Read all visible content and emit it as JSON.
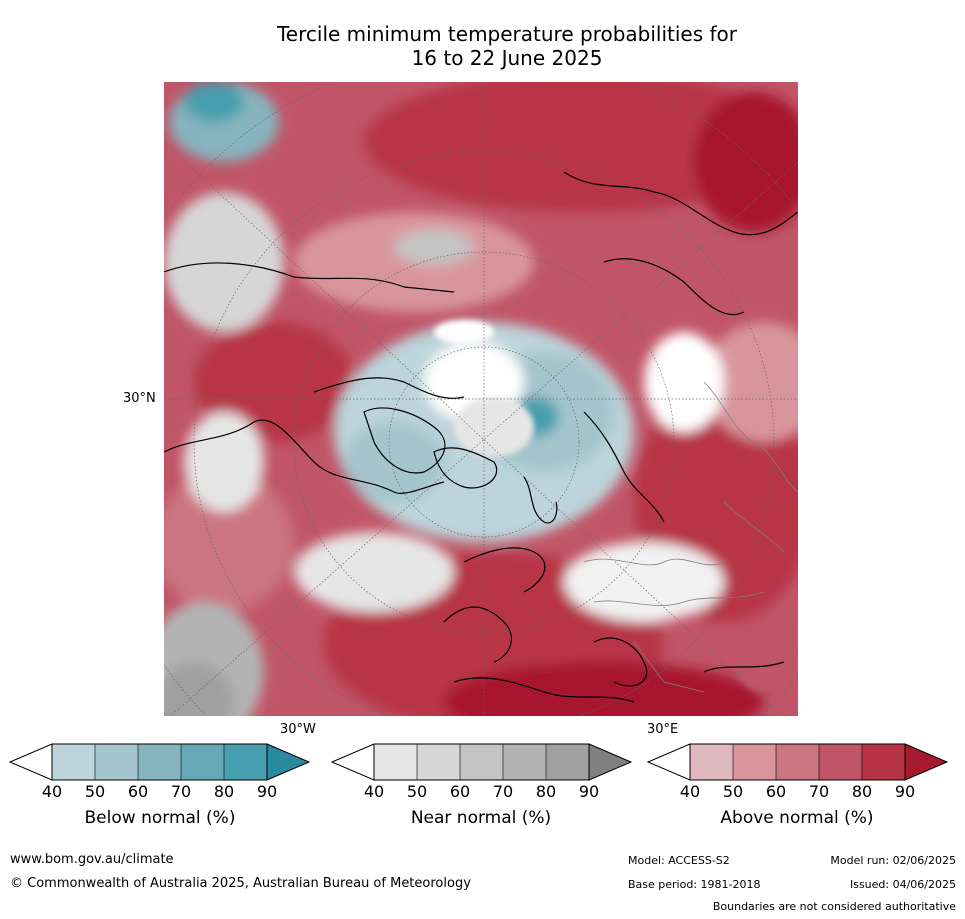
{
  "title": {
    "line1": "Tercile minimum temperature probabilities for",
    "line2": "16 to 22 June 2025"
  },
  "map": {
    "lat_label": "30°N",
    "lon_label_left": "30°W",
    "lon_label_right": "30°E",
    "colors": {
      "above": [
        "#e0b9be",
        "#d9959d",
        "#cb7580",
        "#c05567",
        "#b73447",
        "#a7192f"
      ],
      "below": [
        "#bcd4da",
        "#a4c5cd",
        "#87b4bf",
        "#67a8b6",
        "#479eae",
        "#2a8a9e"
      ],
      "near": [
        "#e6e6e6",
        "#d6d6d6",
        "#c4c4c4",
        "#b3b3b3",
        "#a0a0a0",
        "#808080"
      ]
    }
  },
  "colorbars": {
    "ticks": [
      "40",
      "50",
      "60",
      "70",
      "80",
      "90"
    ],
    "below": {
      "label": "Below normal (%)"
    },
    "near": {
      "label": "Near normal (%)"
    },
    "above": {
      "label": "Above normal (%)"
    }
  },
  "footer": {
    "url": "www.bom.gov.au/climate",
    "copyright": "© Commonwealth of Australia 2025, Australian Bureau of Meteorology",
    "model": "Model: ACCESS-S2",
    "base_period": "Base period: 1981-2018",
    "model_run": "Model run: 02/06/2025",
    "issued": "Issued: 04/06/2025",
    "disclaimer": "Boundaries are not considered authoritative"
  }
}
